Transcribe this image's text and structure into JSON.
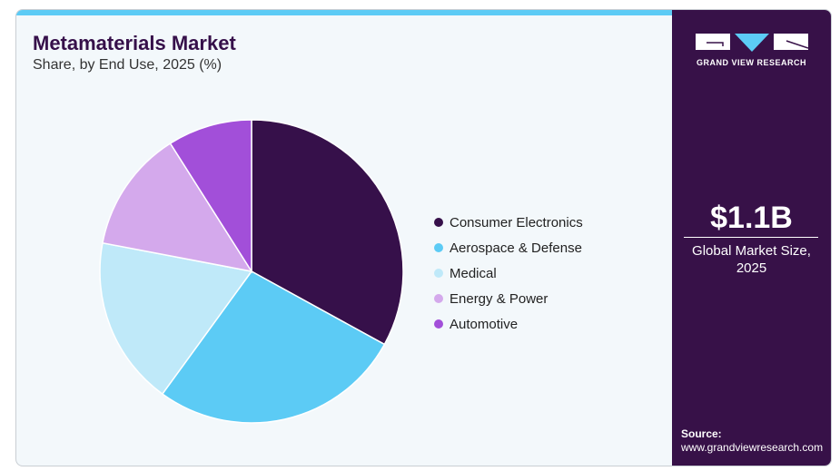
{
  "header": {
    "title": "Metamaterials Market",
    "subtitle": "Share, by End Use, 2025 (%)"
  },
  "chart_data": {
    "type": "pie",
    "title": "Metamaterials Market",
    "subtitle": "Share, by End Use, 2025 (%)",
    "legend_position": "right",
    "categories": [
      "Consumer Electronics",
      "Aerospace & Defense",
      "Medical",
      "Energy & Power",
      "Automotive"
    ],
    "values": [
      33,
      27,
      18,
      13,
      9
    ],
    "colors": [
      "#36104a",
      "#5ccbf5",
      "#bfe9f9",
      "#d4a9ec",
      "#a24fd9"
    ]
  },
  "side": {
    "logo_text": "GRAND VIEW RESEARCH",
    "market_size": "$1.1B",
    "caption_line1": "Global Market Size,",
    "caption_line2": "2025",
    "source_label": "Source:",
    "source_url": "www.grandviewresearch.com"
  }
}
